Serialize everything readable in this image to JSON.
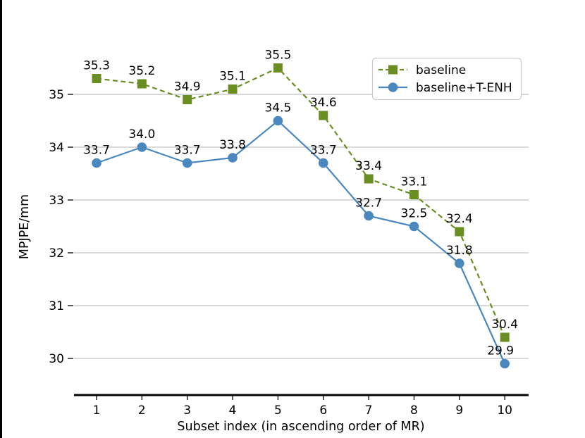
{
  "frame": {
    "background": "#ffffff",
    "left_border_color": "#000000"
  },
  "colors": {
    "grid": "#b0b0b0",
    "axis": "#000000",
    "text": "#000000",
    "legend_border": "#cccccc",
    "legend_fill": "#ffffff"
  },
  "chart_data": {
    "type": "line",
    "title": "",
    "xlabel": "Subset index (in ascending order of MR)",
    "ylabel": "MPJPE/mm",
    "x": [
      1,
      2,
      3,
      4,
      5,
      6,
      7,
      8,
      9,
      10
    ],
    "x_tick_labels": [
      "1",
      "2",
      "3",
      "4",
      "5",
      "6",
      "7",
      "8",
      "9",
      "10"
    ],
    "y_ticks": [
      30,
      31,
      32,
      33,
      34,
      35
    ],
    "y_tick_labels": [
      "30",
      "31",
      "32",
      "33",
      "34",
      "35"
    ],
    "ylim": [
      29.3,
      36.1
    ],
    "grid": "horizontal",
    "legend_position": "upper right",
    "series": [
      {
        "name": "baseline",
        "color": "#6B8E23",
        "line_style": "dashed",
        "marker": "square",
        "values": [
          35.3,
          35.2,
          34.9,
          35.1,
          35.5,
          34.6,
          33.4,
          33.1,
          32.4,
          30.4
        ],
        "labels": [
          "35.3",
          "35.2",
          "34.9",
          "35.1",
          "35.5",
          "34.6",
          "33.4",
          "33.1",
          "32.4",
          "30.4"
        ]
      },
      {
        "name": "baseline+T-ENH",
        "color": "#4A87BE",
        "line_style": "solid",
        "marker": "circle",
        "values": [
          33.7,
          34.0,
          33.7,
          33.8,
          34.5,
          33.7,
          32.7,
          32.5,
          31.8,
          29.9
        ],
        "labels": [
          "33.7",
          "34.0",
          "33.7",
          "33.8",
          "34.5",
          "33.7",
          "32.7",
          "32.5",
          "31.8",
          "29.9"
        ]
      }
    ],
    "annotations_show_values": true
  }
}
